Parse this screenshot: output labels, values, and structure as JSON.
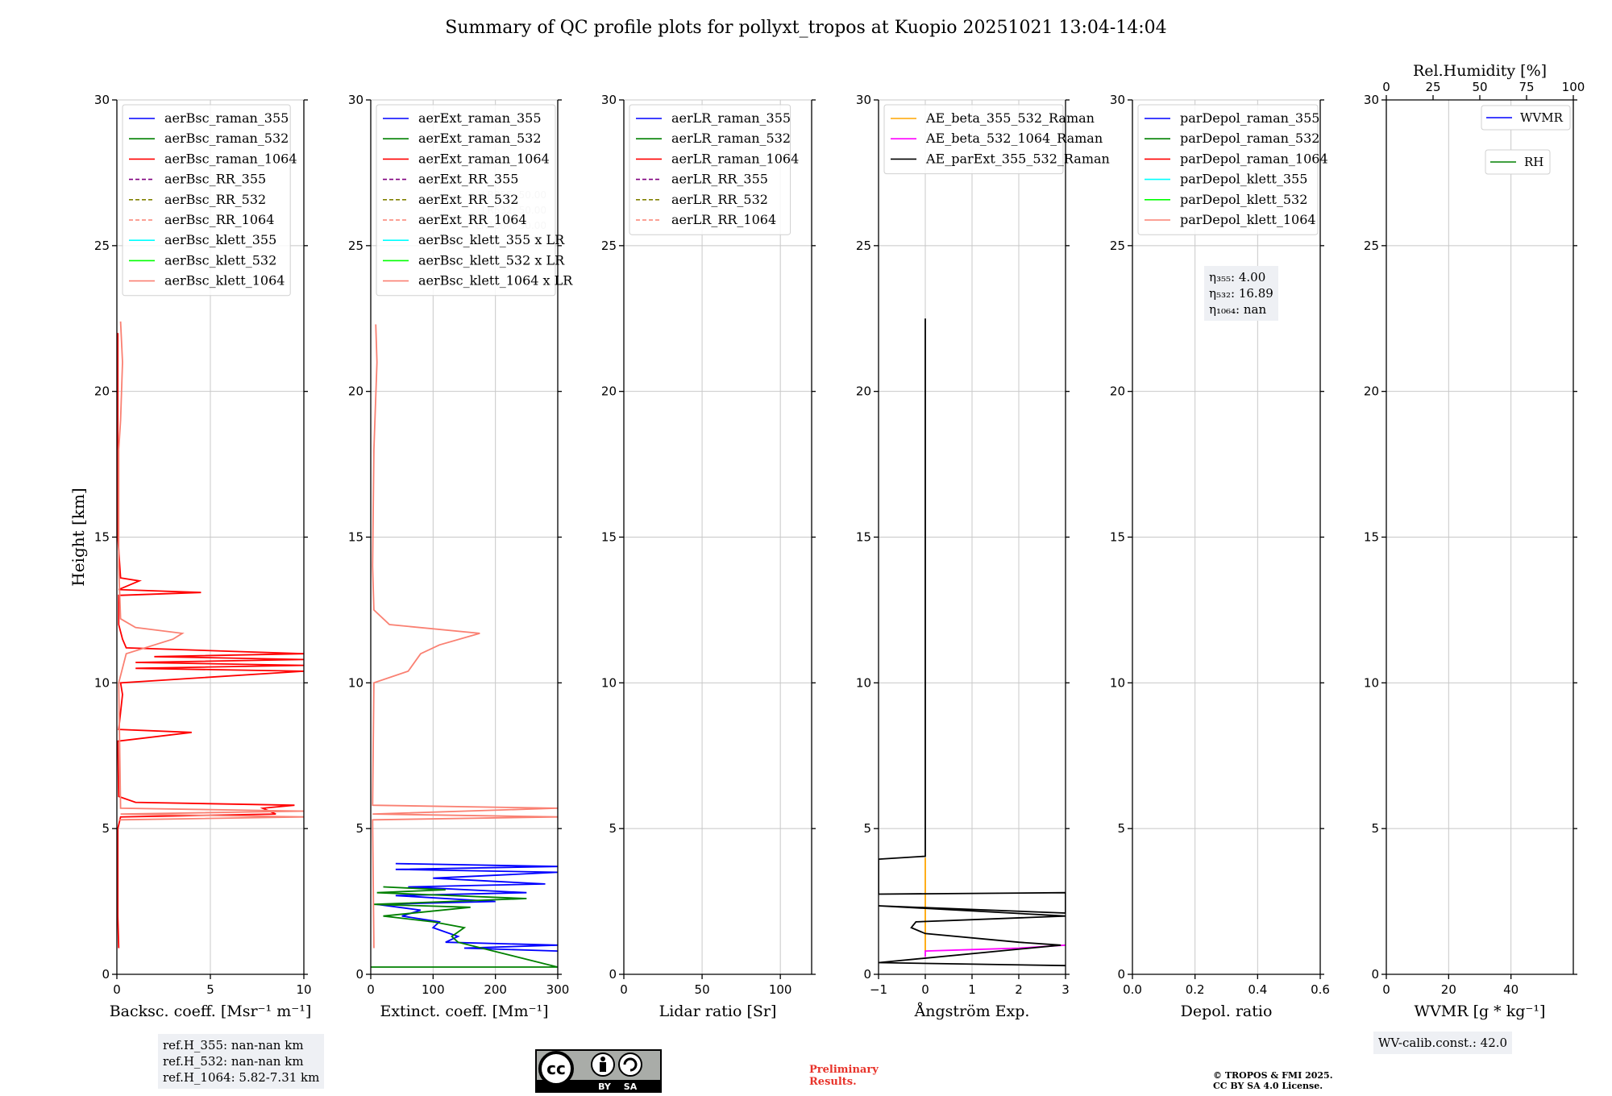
{
  "title": "Summary of QC profile plots for pollyxt_tropos at Kuopio 20251021 13:04-14:04",
  "y_axis_label": "Height [km]",
  "chart_data": [
    {
      "type": "line",
      "id": "bsc",
      "xlabel": "Backsc. coeff. [Msr⁻¹ m⁻¹]",
      "xlim": [
        0,
        10
      ],
      "xticks": [
        0,
        5,
        10
      ],
      "ylim": [
        0,
        30
      ],
      "yticks": [
        0,
        5,
        10,
        15,
        20,
        25,
        30
      ],
      "legend": "top-left",
      "series": [
        {
          "name": "aerBsc_raman_355",
          "color": "#0000ff",
          "style": "solid",
          "points": []
        },
        {
          "name": "aerBsc_raman_532",
          "color": "#008000",
          "style": "solid",
          "points": []
        },
        {
          "name": "aerBsc_raman_1064",
          "color": "#ff0000",
          "style": "solid",
          "points": [
            [
              0.1,
              0.9
            ],
            [
              0.05,
              2
            ],
            [
              0.05,
              5
            ],
            [
              0.2,
              5.4
            ],
            [
              8.5,
              5.5
            ],
            [
              7.8,
              5.7
            ],
            [
              9.5,
              5.8
            ],
            [
              1,
              5.9
            ],
            [
              0.1,
              6.1
            ],
            [
              0.05,
              8
            ],
            [
              4,
              8.3
            ],
            [
              0.1,
              8.4
            ],
            [
              0.3,
              9.6
            ],
            [
              0.2,
              10
            ],
            [
              10,
              10.4
            ],
            [
              1,
              10.5
            ],
            [
              10,
              10.6
            ],
            [
              1,
              10.7
            ],
            [
              10,
              10.8
            ],
            [
              2,
              10.9
            ],
            [
              10,
              11
            ],
            [
              0.5,
              11.2
            ],
            [
              0.3,
              11.5
            ],
            [
              0.1,
              12
            ],
            [
              0.1,
              13
            ],
            [
              4.5,
              13.1
            ],
            [
              0.1,
              13.2
            ],
            [
              1.2,
              13.5
            ],
            [
              0.2,
              13.6
            ],
            [
              0.05,
              15
            ],
            [
              0.05,
              20
            ],
            [
              0.05,
              22
            ]
          ]
        },
        {
          "name": "aerBsc_RR_355",
          "color": "#800080",
          "style": "dashed",
          "points": []
        },
        {
          "name": "aerBsc_RR_532",
          "color": "#808000",
          "style": "dashed",
          "points": []
        },
        {
          "name": "aerBsc_RR_1064",
          "color": "#fa8072",
          "style": "dashed",
          "points": []
        },
        {
          "name": "aerBsc_klett_355",
          "color": "#00ffff",
          "style": "solid",
          "points": []
        },
        {
          "name": "aerBsc_klett_532",
          "color": "#00ff00",
          "style": "solid",
          "points": []
        },
        {
          "name": "aerBsc_klett_1064",
          "color": "#fa8072",
          "style": "solid",
          "points": [
            [
              0.1,
              5.3
            ],
            [
              10,
              5.4
            ],
            [
              0.2,
              5.5
            ],
            [
              10,
              5.6
            ],
            [
              0.2,
              5.7
            ],
            [
              0.1,
              10
            ],
            [
              0.5,
              11
            ],
            [
              3,
              11.5
            ],
            [
              3.5,
              11.7
            ],
            [
              1,
              11.9
            ],
            [
              0.2,
              12.2
            ],
            [
              0.1,
              14
            ],
            [
              0.1,
              18
            ],
            [
              0.2,
              19
            ],
            [
              0.3,
              21
            ],
            [
              0.2,
              22.4
            ]
          ]
        }
      ]
    },
    {
      "type": "line",
      "id": "ext",
      "xlabel": "Extinct. coeff. [Mm⁻¹]",
      "xlim": [
        0,
        300
      ],
      "xticks": [
        0,
        100,
        200,
        300
      ],
      "ylim": [
        0,
        30
      ],
      "yticks": [
        0,
        5,
        10,
        15,
        20,
        25,
        30
      ],
      "legend": "top-left",
      "faded_labels": [
        "LR355: 50.00",
        "LR532: 50.00",
        "LR1064: 50.00"
      ],
      "series": [
        {
          "name": "aerExt_raman_355",
          "color": "#0000ff",
          "style": "solid",
          "points": [
            [
              300,
              0.8
            ],
            [
              150,
              0.9
            ],
            [
              300,
              1
            ],
            [
              120,
              1.1
            ],
            [
              140,
              1.3
            ],
            [
              100,
              1.6
            ],
            [
              110,
              1.8
            ],
            [
              50,
              2
            ],
            [
              80,
              2.2
            ],
            [
              10,
              2.4
            ],
            [
              200,
              2.5
            ],
            [
              40,
              2.7
            ],
            [
              250,
              2.8
            ],
            [
              60,
              3
            ],
            [
              280,
              3.1
            ],
            [
              100,
              3.3
            ],
            [
              300,
              3.5
            ],
            [
              40,
              3.6
            ],
            [
              300,
              3.7
            ],
            [
              40,
              3.8
            ]
          ]
        },
        {
          "name": "aerExt_raman_532",
          "color": "#008000",
          "style": "solid",
          "points": [
            [
              0,
              0.25
            ],
            [
              300,
              0.25
            ],
            [
              140,
              1.1
            ],
            [
              130,
              1.3
            ],
            [
              150,
              1.6
            ],
            [
              100,
              1.8
            ],
            [
              20,
              2
            ],
            [
              160,
              2.3
            ],
            [
              5,
              2.4
            ],
            [
              250,
              2.6
            ],
            [
              10,
              2.8
            ],
            [
              120,
              2.9
            ],
            [
              20,
              3
            ]
          ]
        },
        {
          "name": "aerExt_raman_1064",
          "color": "#ff0000",
          "style": "solid",
          "points": []
        },
        {
          "name": "aerExt_RR_355",
          "color": "#800080",
          "style": "dashed",
          "points": []
        },
        {
          "name": "aerExt_RR_532",
          "color": "#808000",
          "style": "dashed",
          "points": []
        },
        {
          "name": "aerExt_RR_1064",
          "color": "#fa8072",
          "style": "dashed",
          "points": []
        },
        {
          "name": "aerBsc_klett_355 x LR",
          "color": "#00ffff",
          "style": "solid",
          "points": []
        },
        {
          "name": "aerBsc_klett_532 x LR",
          "color": "#00ff00",
          "style": "solid",
          "points": []
        },
        {
          "name": "aerBsc_klett_1064 x LR",
          "color": "#fa8072",
          "style": "solid",
          "points": [
            [
              5,
              0.9
            ],
            [
              3,
              5.3
            ],
            [
              300,
              5.4
            ],
            [
              3,
              5.5
            ],
            [
              300,
              5.7
            ],
            [
              3,
              5.8
            ],
            [
              5,
              10
            ],
            [
              60,
              10.4
            ],
            [
              80,
              11
            ],
            [
              110,
              11.3
            ],
            [
              175,
              11.7
            ],
            [
              30,
              12
            ],
            [
              5,
              12.5
            ],
            [
              3,
              14
            ],
            [
              5,
              18
            ],
            [
              10,
              21
            ],
            [
              8,
              22.3
            ]
          ]
        }
      ]
    },
    {
      "type": "line",
      "id": "lr",
      "xlabel": "Lidar ratio [Sr]",
      "xlim": [
        0,
        120
      ],
      "xticks": [
        0,
        50,
        100
      ],
      "ylim": [
        0,
        30
      ],
      "yticks": [
        0,
        5,
        10,
        15,
        20,
        25,
        30
      ],
      "legend": "top-left",
      "series": [
        {
          "name": "aerLR_raman_355",
          "color": "#0000ff",
          "style": "solid",
          "points": []
        },
        {
          "name": "aerLR_raman_532",
          "color": "#008000",
          "style": "solid",
          "points": []
        },
        {
          "name": "aerLR_raman_1064",
          "color": "#ff0000",
          "style": "solid",
          "points": []
        },
        {
          "name": "aerLR_RR_355",
          "color": "#800080",
          "style": "dashed",
          "points": []
        },
        {
          "name": "aerLR_RR_532",
          "color": "#808000",
          "style": "dashed",
          "points": []
        },
        {
          "name": "aerLR_RR_1064",
          "color": "#fa8072",
          "style": "dashed",
          "points": []
        }
      ]
    },
    {
      "type": "line",
      "id": "ae",
      "xlabel": "Ångström Exp.",
      "xlim": [
        -1,
        3
      ],
      "xticks": [
        -1,
        0,
        1,
        2,
        3
      ],
      "xtick_labels": [
        "−1",
        "0",
        "1",
        "2",
        "3"
      ],
      "ylim": [
        0,
        30
      ],
      "yticks": [
        0,
        5,
        10,
        15,
        20,
        25,
        30
      ],
      "legend": "top-left",
      "series": [
        {
          "name": "AE_beta_355_532_Raman",
          "color": "#ffa500",
          "style": "solid",
          "points": [
            [
              0,
              0.8
            ],
            [
              0,
              4
            ]
          ]
        },
        {
          "name": "AE_beta_532_1064_Raman",
          "color": "#ff00ff",
          "style": "solid",
          "points": [
            [
              0,
              0.6
            ],
            [
              0,
              0.8
            ],
            [
              1,
              0.85
            ],
            [
              2,
              0.9
            ],
            [
              3,
              1
            ]
          ]
        },
        {
          "name": "AE_parExt_355_532_Raman",
          "color": "#000000",
          "style": "solid",
          "points": [
            [
              3,
              0.3
            ],
            [
              -1,
              0.4
            ],
            [
              2.9,
              1.0
            ],
            [
              2,
              1.1
            ],
            [
              0,
              1.4
            ],
            [
              -0.3,
              1.6
            ],
            [
              -0.2,
              1.8
            ],
            [
              3,
              2
            ],
            [
              -1,
              2.35
            ],
            [
              3,
              2.1
            ],
            [
              3,
              2.8
            ],
            [
              -1,
              2.75
            ],
            [
              -1,
              3.95
            ],
            [
              0,
              4.05
            ],
            [
              0,
              22.5
            ]
          ]
        }
      ]
    },
    {
      "type": "line",
      "id": "depol",
      "xlabel": "Depol. ratio",
      "xlim": [
        0,
        0.6
      ],
      "xticks": [
        0,
        0.2,
        0.4,
        0.6
      ],
      "xtick_labels": [
        "0.0",
        "0.2",
        "0.4",
        "0.6"
      ],
      "ylim": [
        0,
        30
      ],
      "yticks": [
        0,
        5,
        10,
        15,
        20,
        25,
        30
      ],
      "legend": "top-left",
      "series": [
        {
          "name": "parDepol_raman_355",
          "color": "#0000ff",
          "style": "solid",
          "points": []
        },
        {
          "name": "parDepol_raman_532",
          "color": "#008000",
          "style": "solid",
          "points": []
        },
        {
          "name": "parDepol_raman_1064",
          "color": "#ff0000",
          "style": "solid",
          "points": []
        },
        {
          "name": "parDepol_klett_355",
          "color": "#00ffff",
          "style": "solid",
          "points": []
        },
        {
          "name": "parDepol_klett_532",
          "color": "#00ff00",
          "style": "solid",
          "points": []
        },
        {
          "name": "parDepol_klett_1064",
          "color": "#fa8072",
          "style": "solid",
          "points": []
        }
      ]
    },
    {
      "type": "line",
      "id": "wv",
      "xlabel": "WVMR [g * kg⁻¹]",
      "xlim": [
        0,
        60
      ],
      "xticks": [
        0,
        20,
        40
      ],
      "top_xlabel": "Rel.Humidity [%]",
      "top_xlim": [
        0,
        100
      ],
      "top_xticks": [
        0,
        25,
        50,
        75,
        100
      ],
      "ylim": [
        0,
        30
      ],
      "yticks": [
        0,
        5,
        10,
        15,
        20,
        25,
        30
      ],
      "legend": "top-right",
      "series": [
        {
          "name": "WVMR",
          "color": "#0000ff",
          "style": "solid",
          "points": []
        },
        {
          "name": "RH",
          "color": "#008000",
          "style": "solid",
          "points": []
        }
      ]
    }
  ],
  "annotations": {
    "ref_h": [
      "ref.H_355: nan-nan km",
      "ref.H_532: nan-nan km",
      "ref.H_1064: 5.82-7.31 km"
    ],
    "eta_labels": [
      "η₃₅₅: 4.00",
      "η₅₃₂: 16.89",
      "η₁₀₆₄: nan"
    ],
    "wv_calib": "WV-calib.const.: 42.0",
    "preliminary": [
      "Preliminary",
      "Results."
    ],
    "copyright": [
      "© TROPOS & FMI 2025.",
      "CC BY SA 4.0 License."
    ],
    "cc_badge": {
      "letters": "cc",
      "by": "BY",
      "sa": "SA"
    }
  }
}
